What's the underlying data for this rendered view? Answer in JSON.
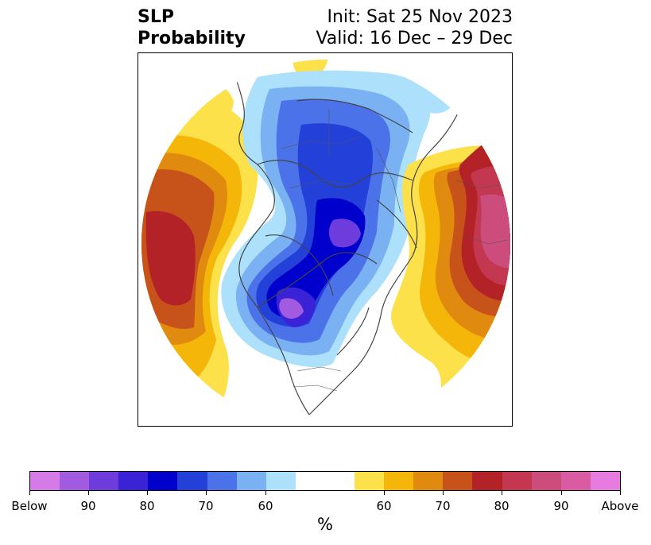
{
  "title": {
    "left_line1": "SLP",
    "left_line2": "Probability",
    "right_line1": "Init: Sat 25 Nov 2023",
    "right_line2": "Valid: 16 Dec – 29 Dec"
  },
  "colorbar": {
    "unit": "%",
    "segments": [
      "#d47be8",
      "#a25ae0",
      "#6e3cdc",
      "#3a22d6",
      "#0000cd",
      "#2340d9",
      "#4b72e8",
      "#79b1f2",
      "#ace0fb",
      "#ffffff",
      "#ffffff",
      "#fde14a",
      "#f4b609",
      "#e08a10",
      "#c7531a",
      "#b22226",
      "#c33850",
      "#cc4d7c",
      "#d95ca3",
      "#e67be0"
    ],
    "labels": [
      "Below",
      "90",
      "80",
      "70",
      "60",
      "60",
      "70",
      "80",
      "90",
      "Above"
    ]
  }
}
